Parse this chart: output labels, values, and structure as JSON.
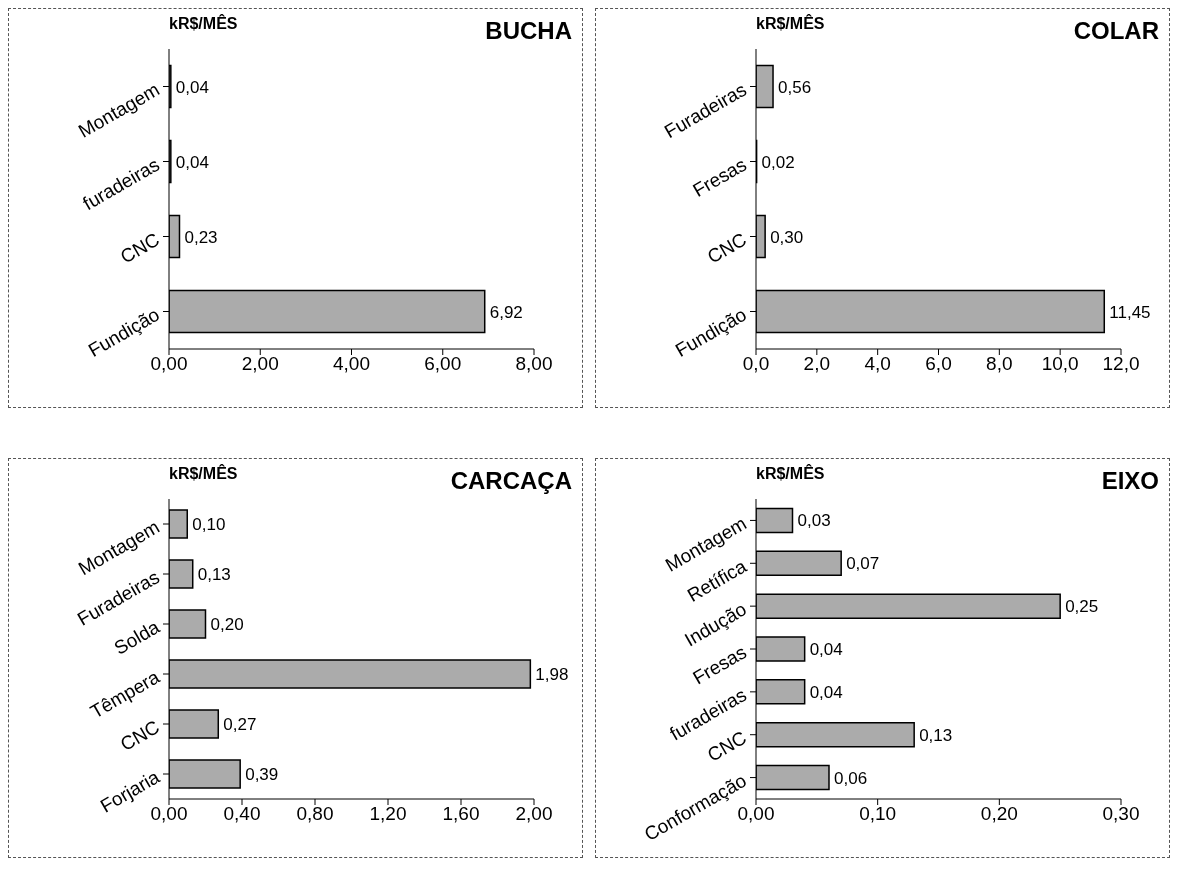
{
  "chart_data": [
    {
      "type": "bar",
      "orientation": "horizontal",
      "title": "BUCHA",
      "xlabel": "kR$/MÊS",
      "categories": [
        "Montagem",
        "furadeiras",
        "CNC",
        "Fundição"
      ],
      "values": [
        0.04,
        0.04,
        0.23,
        6.92
      ],
      "value_labels": [
        "0,04",
        "0,04",
        "0,23",
        "6,92"
      ],
      "color": "#ababab",
      "xlim": [
        0,
        8
      ],
      "xticks": [
        {
          "value": 0,
          "label": "0,00"
        },
        {
          "value": 2,
          "label": "2,00"
        },
        {
          "value": 4,
          "label": "4,00"
        },
        {
          "value": 6,
          "label": "6,00"
        },
        {
          "value": 8,
          "label": "8,00"
        }
      ]
    },
    {
      "type": "bar",
      "orientation": "horizontal",
      "title": "COLAR",
      "xlabel": "kR$/MÊS",
      "categories": [
        "Furadeiras",
        "Fresas",
        "CNC",
        "Fundição"
      ],
      "values": [
        0.56,
        0.02,
        0.3,
        11.45
      ],
      "value_labels": [
        "0,56",
        "0,02",
        "0,30",
        "11,45"
      ],
      "color": "#ababab",
      "xlim": [
        0,
        12
      ],
      "xticks": [
        {
          "value": 0,
          "label": "0,0"
        },
        {
          "value": 2,
          "label": "2,0"
        },
        {
          "value": 4,
          "label": "4,0"
        },
        {
          "value": 6,
          "label": "6,0"
        },
        {
          "value": 8,
          "label": "8,0"
        },
        {
          "value": 10,
          "label": "10,0"
        },
        {
          "value": 12,
          "label": "12,0"
        }
      ]
    },
    {
      "type": "bar",
      "orientation": "horizontal",
      "title": "CARCAÇA",
      "xlabel": "kR$/MÊS",
      "categories": [
        "Montagem",
        "Furadeiras",
        "Solda",
        "Têmpera",
        "CNC",
        "Forjaria"
      ],
      "values": [
        0.1,
        0.13,
        0.2,
        1.98,
        0.27,
        0.39
      ],
      "value_labels": [
        "0,10",
        "0,13",
        "0,20",
        "1,98",
        "0,27",
        "0,39"
      ],
      "color": "#ababab",
      "xlim": [
        0,
        2
      ],
      "xticks": [
        {
          "value": 0,
          "label": "0,00"
        },
        {
          "value": 0.4,
          "label": "0,40"
        },
        {
          "value": 0.8,
          "label": "0,80"
        },
        {
          "value": 1.2,
          "label": "1,20"
        },
        {
          "value": 1.6,
          "label": "1,60"
        },
        {
          "value": 2,
          "label": "2,00"
        }
      ]
    },
    {
      "type": "bar",
      "orientation": "horizontal",
      "title": "EIXO",
      "xlabel": "kR$/MÊS",
      "categories": [
        "Montagem",
        "Retífica",
        "Indução",
        "Fresas",
        "furadeiras",
        "CNC",
        "Conformação"
      ],
      "values": [
        0.03,
        0.07,
        0.25,
        0.04,
        0.04,
        0.13,
        0.06
      ],
      "value_labels": [
        "0,03",
        "0,07",
        "0,25",
        "0,04",
        "0,04",
        "0,13",
        "0,06"
      ],
      "color": "#ababab",
      "xlim": [
        0,
        0.3
      ],
      "xticks": [
        {
          "value": 0,
          "label": "0,00"
        },
        {
          "value": 0.1,
          "label": "0,10"
        },
        {
          "value": 0.2,
          "label": "0,20"
        },
        {
          "value": 0.3,
          "label": "0,30"
        }
      ]
    }
  ]
}
